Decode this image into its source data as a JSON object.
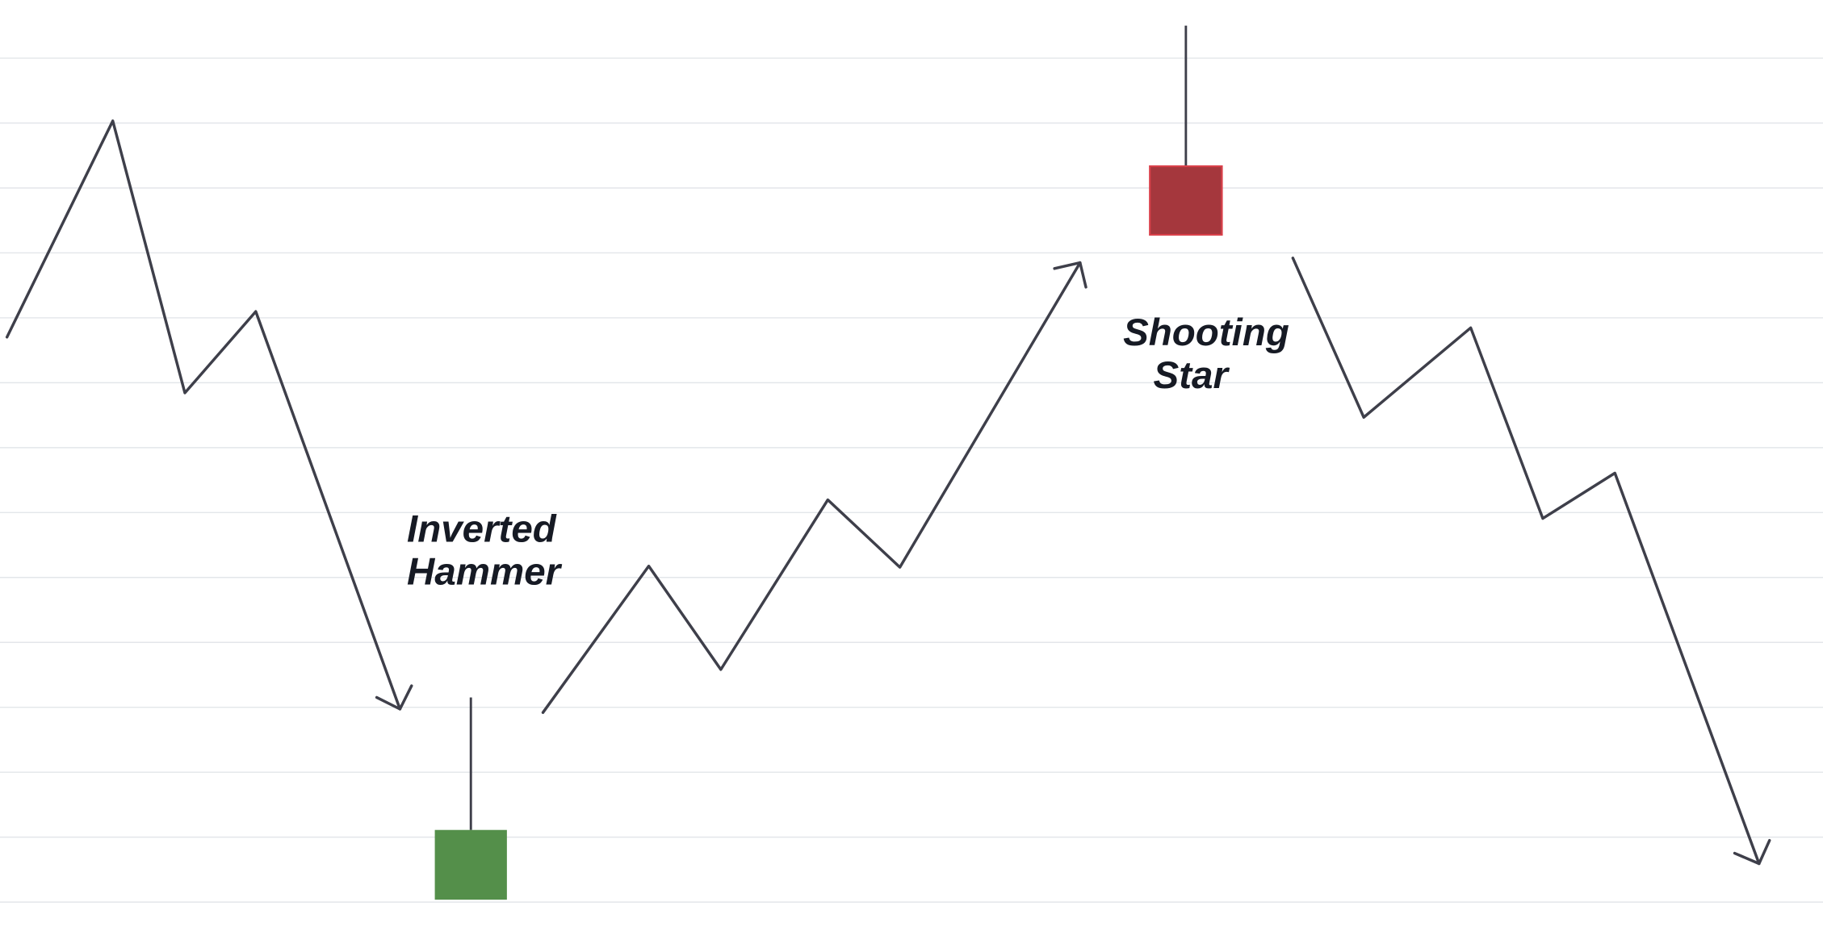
{
  "labels": {
    "inverted_hammer": [
      "Inverted",
      "Hammer"
    ],
    "shooting_star": [
      "Shooting",
      "Star"
    ]
  },
  "colors": {
    "background": "#ffffff",
    "gridline": "#e3e6ea",
    "trend_line": "#3e3f4a",
    "bullish_candle": "#548f4a",
    "bearish_candle": "#a5373d",
    "bearish_candle_border": "#d9404a",
    "label_text": "#161a24"
  },
  "candles": [
    {
      "pattern": "Inverted Hammer",
      "direction": "bullish"
    },
    {
      "pattern": "Shooting Star",
      "direction": "bearish"
    }
  ]
}
